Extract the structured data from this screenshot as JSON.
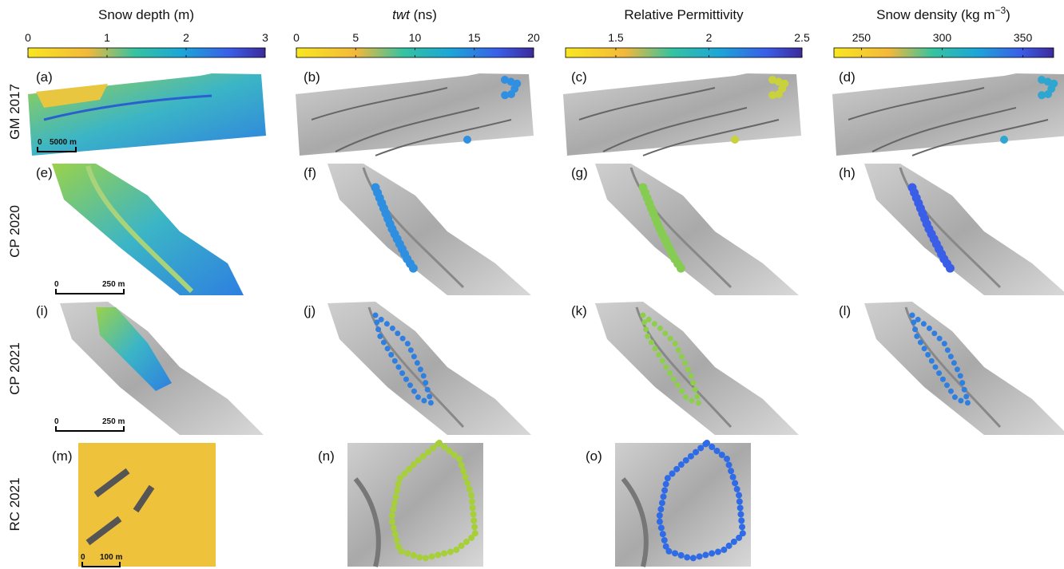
{
  "colorbars": [
    {
      "title": "Snow depth (m)",
      "lim": [
        0,
        3
      ],
      "ticks": [
        0,
        1,
        2,
        3
      ]
    },
    {
      "title_italic": "twt",
      "title": "(ns)",
      "lim": [
        0,
        20
      ],
      "ticks": [
        0,
        5,
        10,
        15,
        20
      ]
    },
    {
      "title": "Relative Permittivity",
      "lim": [
        1.23,
        2.5
      ],
      "ticks": [
        1.5,
        2,
        2.5
      ]
    },
    {
      "title": "Snow density (kg m",
      "title_superscript": "−3",
      "title_end": ")",
      "lim": [
        233,
        369
      ],
      "ticks": [
        250,
        300,
        350
      ]
    }
  ],
  "rows": [
    "GM 2017",
    "CP 2020",
    "CP 2021",
    "RC 2021"
  ],
  "panels": [
    "(a)",
    "(b)",
    "(c)",
    "(d)",
    "(e)",
    "(f)",
    "(g)",
    "(h)",
    "(i)",
    "(j)",
    "(k)",
    "(l)",
    "(m)",
    "(n)",
    "(o)"
  ],
  "scale_bars": [
    {
      "start": "0",
      "end": "5000 m"
    },
    {
      "start": "0",
      "end": "250 m"
    },
    {
      "start": "0",
      "end": "250 m"
    },
    {
      "start": "0",
      "end": "100 m"
    }
  ]
}
